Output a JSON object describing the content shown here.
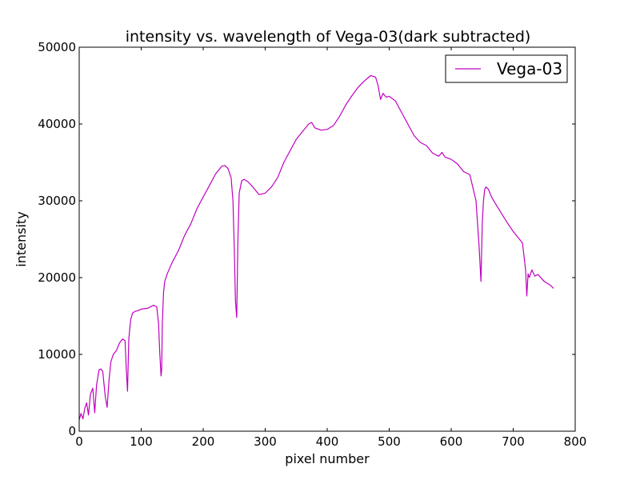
{
  "chart_data": {
    "type": "line",
    "title": "intensity vs. wavelength of Vega-03(dark subtracted)",
    "xlabel": "pixel number",
    "ylabel": "intensity",
    "xlim": [
      0,
      800
    ],
    "ylim": [
      0,
      50000
    ],
    "xticks": [
      0,
      100,
      200,
      300,
      400,
      500,
      600,
      700,
      800
    ],
    "yticks": [
      0,
      10000,
      20000,
      30000,
      40000,
      50000
    ],
    "grid": false,
    "legend_position": "top-right",
    "series": [
      {
        "name": "Vega-03",
        "color": "#bf00bf",
        "x": [
          0,
          3,
          6,
          9,
          12,
          15,
          18,
          22,
          25,
          28,
          32,
          35,
          38,
          42,
          45,
          48,
          51,
          55,
          60,
          65,
          70,
          74,
          76,
          78,
          80,
          83,
          86,
          90,
          95,
          100,
          110,
          120,
          125,
          128,
          130,
          132,
          133,
          134,
          136,
          138,
          142,
          150,
          160,
          170,
          180,
          190,
          200,
          210,
          220,
          230,
          235,
          240,
          245,
          248,
          250,
          252,
          254,
          256,
          258,
          262,
          266,
          272,
          280,
          290,
          300,
          310,
          320,
          330,
          340,
          350,
          360,
          370,
          375,
          380,
          390,
          400,
          410,
          420,
          430,
          440,
          450,
          460,
          470,
          478,
          482,
          486,
          490,
          495,
          500,
          510,
          520,
          530,
          540,
          550,
          560,
          570,
          580,
          585,
          590,
          600,
          610,
          620,
          630,
          640,
          645,
          648,
          650,
          652,
          654,
          656,
          660,
          665,
          670,
          680,
          690,
          700,
          710,
          715,
          720,
          722,
          724,
          726,
          730,
          735,
          740,
          750,
          760,
          765
        ],
        "values": [
          1500,
          2300,
          1600,
          3000,
          3700,
          2100,
          4800,
          5600,
          2400,
          6000,
          8000,
          8100,
          7800,
          4500,
          3100,
          6500,
          9000,
          10000,
          10500,
          11500,
          12000,
          11800,
          8000,
          5200,
          12000,
          14500,
          15400,
          15600,
          15700,
          15900,
          16000,
          16400,
          16200,
          14000,
          10000,
          7200,
          8000,
          14000,
          18000,
          19500,
          20500,
          22000,
          23500,
          25500,
          27000,
          29000,
          30500,
          32000,
          33500,
          34500,
          34600,
          34200,
          33000,
          30000,
          24000,
          17000,
          14800,
          25000,
          31000,
          32600,
          32800,
          32500,
          31800,
          30800,
          31000,
          31800,
          33000,
          35000,
          36500,
          38000,
          39000,
          40000,
          40200,
          39500,
          39200,
          39300,
          39800,
          41000,
          42500,
          43700,
          44800,
          45600,
          46300,
          46100,
          45000,
          43200,
          44000,
          43500,
          43600,
          43000,
          41500,
          40000,
          38500,
          37600,
          37200,
          36200,
          35800,
          36300,
          35700,
          35400,
          34800,
          33800,
          33400,
          30000,
          24000,
          19500,
          27000,
          30000,
          31500,
          31800,
          31500,
          30500,
          29800,
          28500,
          27200,
          26000,
          25000,
          24500,
          21000,
          17600,
          20500,
          20000,
          21000,
          20200,
          20400,
          19500,
          19000,
          18600
        ]
      }
    ]
  }
}
